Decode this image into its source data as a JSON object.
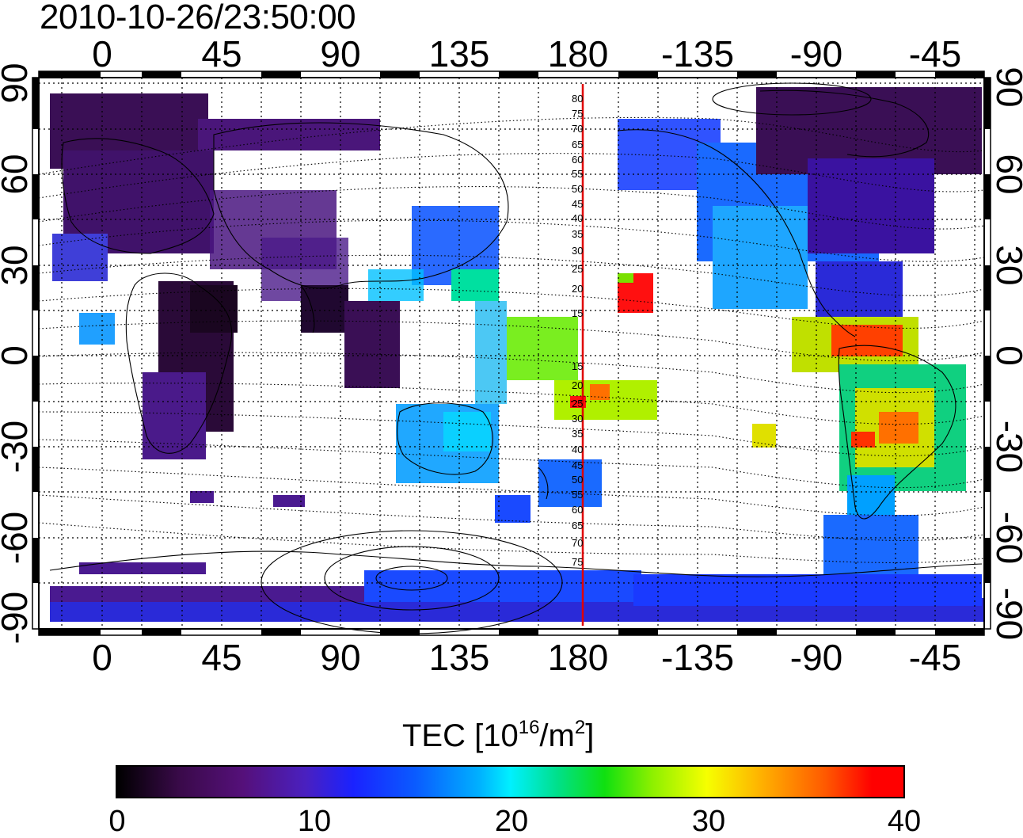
{
  "timestamp": "2010-10-26/23:50:00",
  "map": {
    "lon_ticks_top": [
      "0",
      "45",
      "90",
      "135",
      "180",
      "-135",
      "-90",
      "-45"
    ],
    "lon_ticks_bottom": [
      "0",
      "45",
      "90",
      "135",
      "180",
      "-135",
      "-90",
      "-45"
    ],
    "lat_ticks_left": [
      "90",
      "60",
      "30",
      "0",
      "-30",
      "-60",
      "-90"
    ],
    "lat_ticks_right": [
      "90",
      "60",
      "30",
      "0",
      "-30",
      "-60",
      "-90"
    ],
    "magnetic_latitude_labels": [
      "80",
      "75",
      "70",
      "65",
      "60",
      "55",
      "50",
      "45",
      "40",
      "35",
      "30",
      "25",
      "20",
      "15",
      "15",
      "20",
      "25",
      "30",
      "35",
      "40",
      "45",
      "50",
      "55",
      "60",
      "65",
      "70",
      "75"
    ],
    "dateline_color": "#e00000"
  },
  "colorbar": {
    "title_prefix": "TEC  [10",
    "title_sup1": "16",
    "title_mid": "/m",
    "title_sup2": "2",
    "title_suffix": "]",
    "tick_labels": [
      "0",
      "10",
      "20",
      "30",
      "40"
    ],
    "range": [
      0,
      40
    ],
    "colormap": [
      "#000000",
      "#55107a",
      "#1a22ff",
      "#00f0ff",
      "#10e010",
      "#f6ff00",
      "#ff5a00",
      "#ff0000"
    ]
  }
}
